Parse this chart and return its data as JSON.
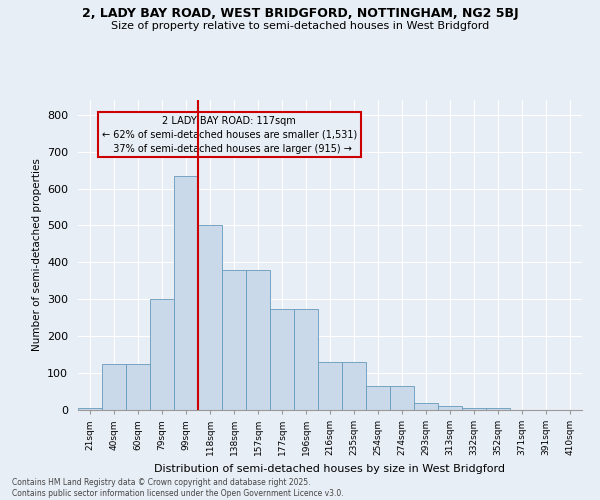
{
  "title1": "2, LADY BAY ROAD, WEST BRIDGFORD, NOTTINGHAM, NG2 5BJ",
  "title2": "Size of property relative to semi-detached houses in West Bridgford",
  "xlabel": "Distribution of semi-detached houses by size in West Bridgford",
  "ylabel": "Number of semi-detached properties",
  "categories": [
    "21sqm",
    "40sqm",
    "60sqm",
    "79sqm",
    "99sqm",
    "118sqm",
    "138sqm",
    "157sqm",
    "177sqm",
    "196sqm",
    "216sqm",
    "235sqm",
    "254sqm",
    "274sqm",
    "293sqm",
    "313sqm",
    "332sqm",
    "352sqm",
    "371sqm",
    "391sqm",
    "410sqm"
  ],
  "values": [
    5,
    125,
    125,
    300,
    635,
    500,
    380,
    380,
    275,
    275,
    130,
    130,
    65,
    65,
    20,
    10,
    5,
    5,
    0,
    0,
    0
  ],
  "bar_color": "#c9d9e9",
  "bar_edge_color": "#6699bb",
  "vline_x": 4.5,
  "vline_color": "#cc0000",
  "annotation_title": "2 LADY BAY ROAD: 117sqm",
  "annotation_line1": "← 62% of semi-detached houses are smaller (1,531)",
  "annotation_line2": "37% of semi-detached houses are larger (915) →",
  "annotation_box_color": "#cc0000",
  "ylim": [
    0,
    840
  ],
  "yticks": [
    0,
    100,
    200,
    300,
    400,
    500,
    600,
    700,
    800
  ],
  "footnote1": "Contains HM Land Registry data © Crown copyright and database right 2025.",
  "footnote2": "Contains public sector information licensed under the Open Government Licence v3.0.",
  "bg_color": "#e8eef5"
}
